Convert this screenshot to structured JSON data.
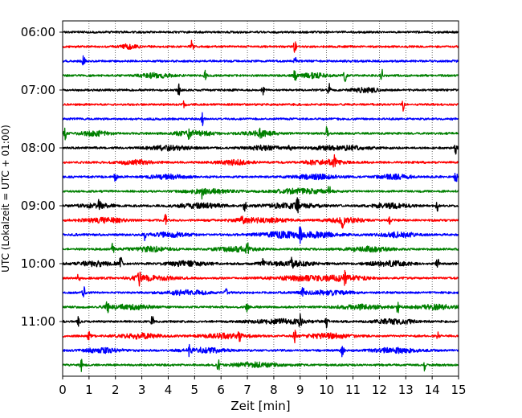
{
  "chart_data": {
    "type": "line",
    "title": "",
    "xlabel": "Zeit  [min]",
    "ylabel": "UTC (Lokalzeit = UTC + 01:00)",
    "xlim": [
      0,
      15
    ],
    "x_ticks": [
      "0",
      "1",
      "2",
      "3",
      "4",
      "5",
      "6",
      "7",
      "8",
      "9",
      "10",
      "11",
      "12",
      "13",
      "14",
      "15"
    ],
    "y_time_labels": [
      "06:00",
      "07:00",
      "08:00",
      "09:00",
      "10:00",
      "11:00"
    ],
    "x_grid": "dotted vertical lines at every minute",
    "color_cycle": [
      "#000000",
      "#ff0000",
      "#0000ff",
      "#008000"
    ],
    "traces": [
      {
        "start": "06:00",
        "color": "#000000"
      },
      {
        "start": "06:15",
        "color": "#ff0000"
      },
      {
        "start": "06:30",
        "color": "#0000ff"
      },
      {
        "start": "06:45",
        "color": "#008000"
      },
      {
        "start": "07:00",
        "color": "#000000"
      },
      {
        "start": "07:15",
        "color": "#ff0000"
      },
      {
        "start": "07:30",
        "color": "#0000ff"
      },
      {
        "start": "07:45",
        "color": "#008000"
      },
      {
        "start": "08:00",
        "color": "#000000"
      },
      {
        "start": "08:15",
        "color": "#ff0000"
      },
      {
        "start": "08:30",
        "color": "#0000ff"
      },
      {
        "start": "08:45",
        "color": "#008000"
      },
      {
        "start": "09:00",
        "color": "#000000"
      },
      {
        "start": "09:15",
        "color": "#ff0000"
      },
      {
        "start": "09:30",
        "color": "#0000ff"
      },
      {
        "start": "09:45",
        "color": "#008000"
      },
      {
        "start": "10:00",
        "color": "#000000"
      },
      {
        "start": "10:15",
        "color": "#ff0000"
      },
      {
        "start": "10:30",
        "color": "#0000ff"
      },
      {
        "start": "10:45",
        "color": "#008000"
      },
      {
        "start": "11:00",
        "color": "#000000"
      },
      {
        "start": "11:15",
        "color": "#ff0000"
      },
      {
        "start": "11:30",
        "color": "#0000ff"
      },
      {
        "start": "11:45",
        "color": "#008000"
      }
    ],
    "spikes": [
      [],
      [
        4.9,
        8.8
      ],
      [
        0.8,
        8.8
      ],
      [
        5.4,
        8.8,
        10.7,
        12.1
      ],
      [
        4.4,
        7.6,
        10.1
      ],
      [
        4.6,
        12.9
      ],
      [
        5.3
      ],
      [
        0.1,
        4.8,
        7.5,
        10.0
      ],
      [
        8.6,
        14.9
      ],
      [
        10.3
      ],
      [
        2.0,
        14.9
      ],
      [
        5.3,
        10.1
      ],
      [
        1.4,
        6.9,
        8.9,
        14.2
      ],
      [
        3.9,
        6.8,
        10.6,
        12.4
      ],
      [
        3.1,
        9.0
      ],
      [
        1.9,
        7.0
      ],
      [
        2.2,
        7.6,
        8.7,
        14.2
      ],
      [
        0.6,
        2.9,
        10.7
      ],
      [
        0.8,
        6.2,
        9.1
      ],
      [
        1.7,
        7.0,
        12.7
      ],
      [
        0.6,
        3.4,
        9.0,
        10.0
      ],
      [
        1.0,
        6.7,
        8.8,
        14.2
      ],
      [
        4.8,
        10.6
      ],
      [
        0.7,
        5.9,
        13.7
      ]
    ],
    "bursts": [
      [],
      [
        [
          2.5,
          0.3
        ]
      ],
      [],
      [
        [
          3.5,
          0.6
        ],
        [
          9.5,
          0.5
        ]
      ],
      [
        [
          11.5,
          0.5
        ]
      ],
      [],
      [],
      [
        [
          1.2,
          0.6
        ],
        [
          5.0,
          0.8
        ],
        [
          7.5,
          0.6
        ]
      ],
      [
        [
          4.0,
          0.8
        ],
        [
          7.6,
          0.6
        ],
        [
          10.5,
          1.0
        ]
      ],
      [
        [
          2.8,
          0.6
        ],
        [
          6.5,
          0.6
        ],
        [
          9.9,
          0.8
        ]
      ],
      [
        [
          4.0,
          0.7
        ],
        [
          9.6,
          0.8
        ],
        [
          12.6,
          0.6
        ]
      ],
      [
        [
          5.5,
          0.8
        ],
        [
          9.0,
          1.0
        ]
      ],
      [
        [
          1.3,
          0.6
        ],
        [
          5.2,
          0.9
        ],
        [
          8.6,
          1.1
        ],
        [
          12.4,
          0.8
        ]
      ],
      [
        [
          1.6,
          0.8
        ],
        [
          7.5,
          1.0
        ],
        [
          10.7,
          0.7
        ]
      ],
      [
        [
          4.1,
          0.7
        ],
        [
          8.2,
          0.9
        ],
        [
          9.5,
          1.0
        ],
        [
          12.7,
          0.7
        ]
      ],
      [
        [
          3.3,
          0.7
        ],
        [
          6.6,
          0.8
        ],
        [
          11.6,
          0.8
        ]
      ],
      [
        [
          1.3,
          0.7
        ],
        [
          4.7,
          0.8
        ],
        [
          8.6,
          1.0
        ],
        [
          12.4,
          0.8
        ]
      ],
      [
        [
          3.3,
          0.9
        ],
        [
          9.1,
          1.1
        ],
        [
          10.7,
          0.8
        ]
      ],
      [
        [
          4.7,
          0.8
        ],
        [
          10.0,
          0.9
        ]
      ],
      [
        [
          2.5,
          0.8
        ],
        [
          11.3,
          0.8
        ],
        [
          14.0,
          0.9
        ]
      ],
      [
        [
          8.3,
          1.1
        ],
        [
          12.6,
          0.8
        ]
      ],
      [
        [
          2.9,
          0.8
        ],
        [
          6.1,
          0.9
        ],
        [
          10.1,
          0.8
        ]
      ],
      [
        [
          1.5,
          0.7
        ],
        [
          5.4,
          0.8
        ],
        [
          12.6,
          0.9
        ]
      ],
      [
        [
          7.3,
          0.9
        ]
      ]
    ]
  }
}
